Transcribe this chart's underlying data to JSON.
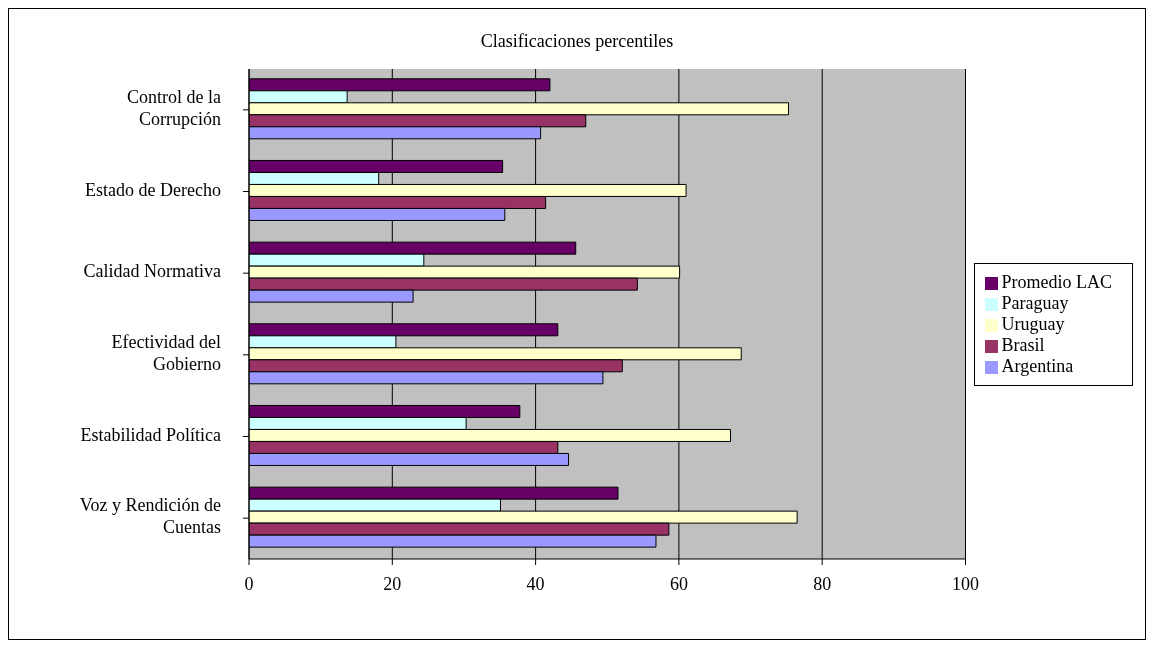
{
  "chart_data": {
    "type": "bar",
    "orientation": "horizontal",
    "title": "Clasificaciones percentiles",
    "categories": [
      "Control de la Corrupción",
      "Estado de Derecho",
      "Calidad Normativa",
      "Efectividad del Gobierno",
      "Estabilidad Política",
      "Voz y Rendición de Cuentas"
    ],
    "series": [
      {
        "name": "Promedio LAC",
        "color": "#660066",
        "values": [
          42.0,
          35.4,
          45.6,
          43.1,
          37.8,
          51.5
        ]
      },
      {
        "name": "Paraguay",
        "color": "#ccffff",
        "values": [
          13.7,
          18.1,
          24.4,
          20.5,
          30.3,
          35.1
        ]
      },
      {
        "name": "Uruguay",
        "color": "#ffffcc",
        "values": [
          75.3,
          61.0,
          60.1,
          68.7,
          67.2,
          76.5
        ]
      },
      {
        "name": "Brasil",
        "color": "#993366",
        "values": [
          47.0,
          41.4,
          54.2,
          52.1,
          43.1,
          58.6
        ]
      },
      {
        "name": "Argentina",
        "color": "#9999ff",
        "values": [
          40.7,
          35.7,
          22.9,
          49.4,
          44.6,
          56.8
        ]
      }
    ],
    "xlim": [
      0,
      100
    ],
    "xticks": [
      0,
      20,
      40,
      60,
      80,
      100
    ],
    "grid": "x",
    "legend": "right"
  }
}
